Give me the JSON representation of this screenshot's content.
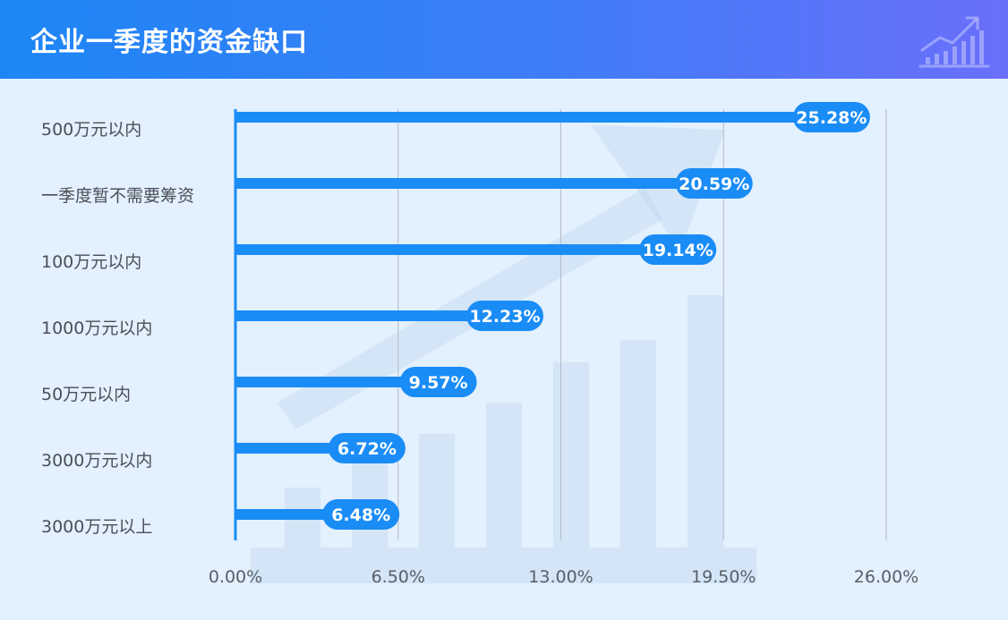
{
  "header": {
    "title": "企业一季度的资金缺口"
  },
  "icons": {
    "header_icon": "rising-bar-chart-icon"
  },
  "colors": {
    "header_start": "#1d86f5",
    "header_end": "#6a6ffb",
    "background": "#e3f0fd",
    "bar": "#1a8cf6",
    "axis": "#1a8cf6",
    "grid": "#b5bcc4"
  },
  "chart_data": {
    "type": "bar",
    "orientation": "horizontal",
    "title": "企业一季度的资金缺口",
    "categories": [
      "500万元以内",
      "一季度暂不需要筹资",
      "100万元以内",
      "1000万元以内",
      "50万元以内",
      "3000万元以内",
      "3000万元以上"
    ],
    "values": [
      25.28,
      20.59,
      19.14,
      12.23,
      9.57,
      6.72,
      6.48
    ],
    "value_labels": [
      "25.28%",
      "20.59%",
      "19.14%",
      "12.23%",
      "9.57%",
      "6.72%",
      "6.48%"
    ],
    "x_ticks": [
      0,
      6.5,
      13,
      19.5,
      26
    ],
    "x_tick_labels": [
      "0.00%",
      "6.50%",
      "13.00%",
      "19.50%",
      "26.00%"
    ],
    "xlim": [
      0,
      26
    ],
    "grid": true,
    "xlabel": "",
    "ylabel": ""
  }
}
